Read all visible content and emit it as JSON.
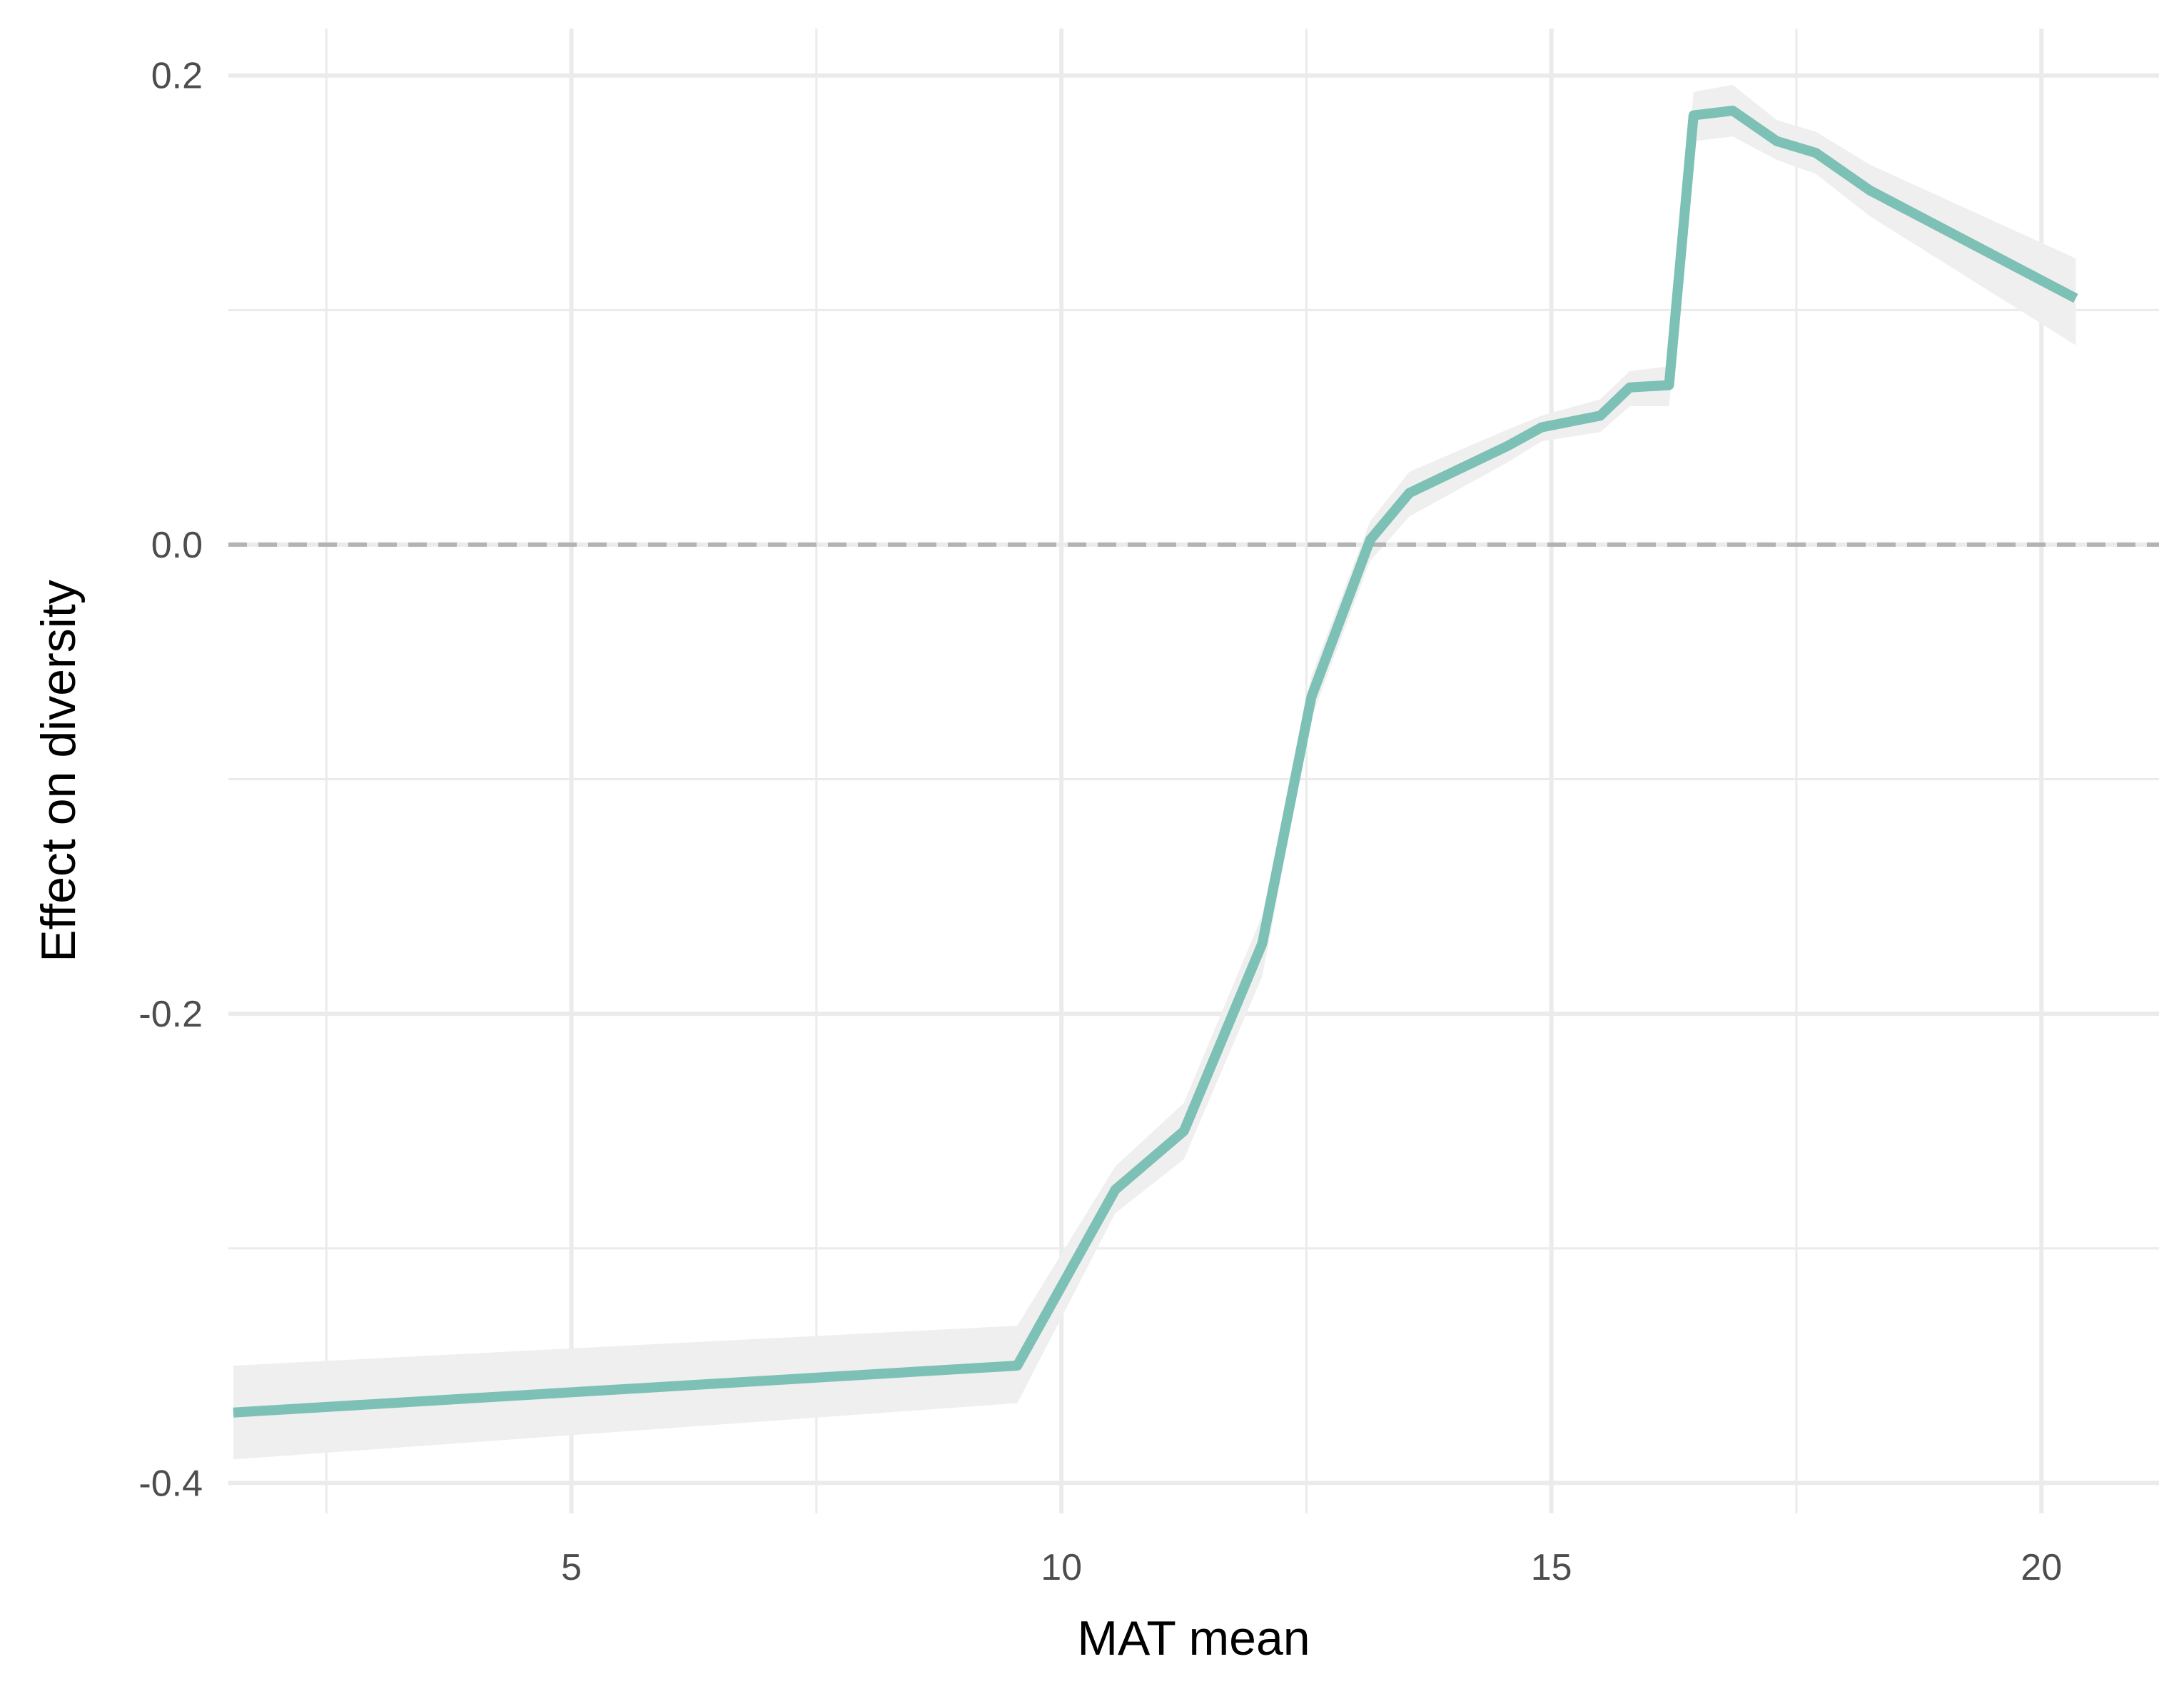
{
  "chart_data": {
    "type": "line",
    "xlabel": "MAT mean",
    "ylabel": "Effect on diversity",
    "xlim": [
      1.5,
      21.2
    ],
    "ylim": [
      -0.413,
      0.22
    ],
    "x_ticks": [
      5,
      10,
      15,
      20
    ],
    "x_tick_labels": [
      "5",
      "10",
      "15",
      "20"
    ],
    "x_minor_ticks": [
      2.5,
      7.5,
      12.5,
      17.5
    ],
    "y_ticks": [
      0.2,
      0.0,
      -0.2,
      -0.4
    ],
    "y_tick_labels": [
      "0.2",
      "0.0",
      "-0.2",
      "-0.4"
    ],
    "y_minor_ticks": [
      0.1,
      -0.1,
      -0.3
    ],
    "grid": true,
    "reference_line": {
      "y": 0,
      "style": "dashed",
      "color": "#b3b3b3"
    },
    "colors": {
      "line": "#7dc0b5",
      "band": "#efefef",
      "grid": "#ebebeb"
    },
    "series": [
      {
        "x": [
          1.55,
          9.55,
          10.55,
          11.25,
          12.05,
          12.55,
          13.15,
          13.55,
          14.55,
          14.9,
          15.5,
          15.8,
          16.2,
          16.45,
          16.85,
          17.3,
          17.7,
          18.25,
          20.35
        ],
        "y": [
          -0.37,
          -0.35,
          -0.275,
          -0.25,
          -0.17,
          -0.065,
          0.002,
          0.022,
          0.042,
          0.05,
          0.055,
          0.067,
          0.068,
          0.183,
          0.185,
          0.172,
          0.167,
          0.151,
          0.105
        ],
        "lower": [
          -0.39,
          -0.366,
          -0.285,
          -0.262,
          -0.184,
          -0.074,
          -0.007,
          0.012,
          0.035,
          0.044,
          0.048,
          0.059,
          0.059,
          0.172,
          0.174,
          0.164,
          0.158,
          0.14,
          0.085
        ],
        "upper": [
          -0.35,
          -0.333,
          -0.265,
          -0.238,
          -0.158,
          -0.056,
          0.01,
          0.031,
          0.049,
          0.055,
          0.062,
          0.074,
          0.076,
          0.193,
          0.196,
          0.181,
          0.176,
          0.162,
          0.122
        ]
      }
    ]
  }
}
